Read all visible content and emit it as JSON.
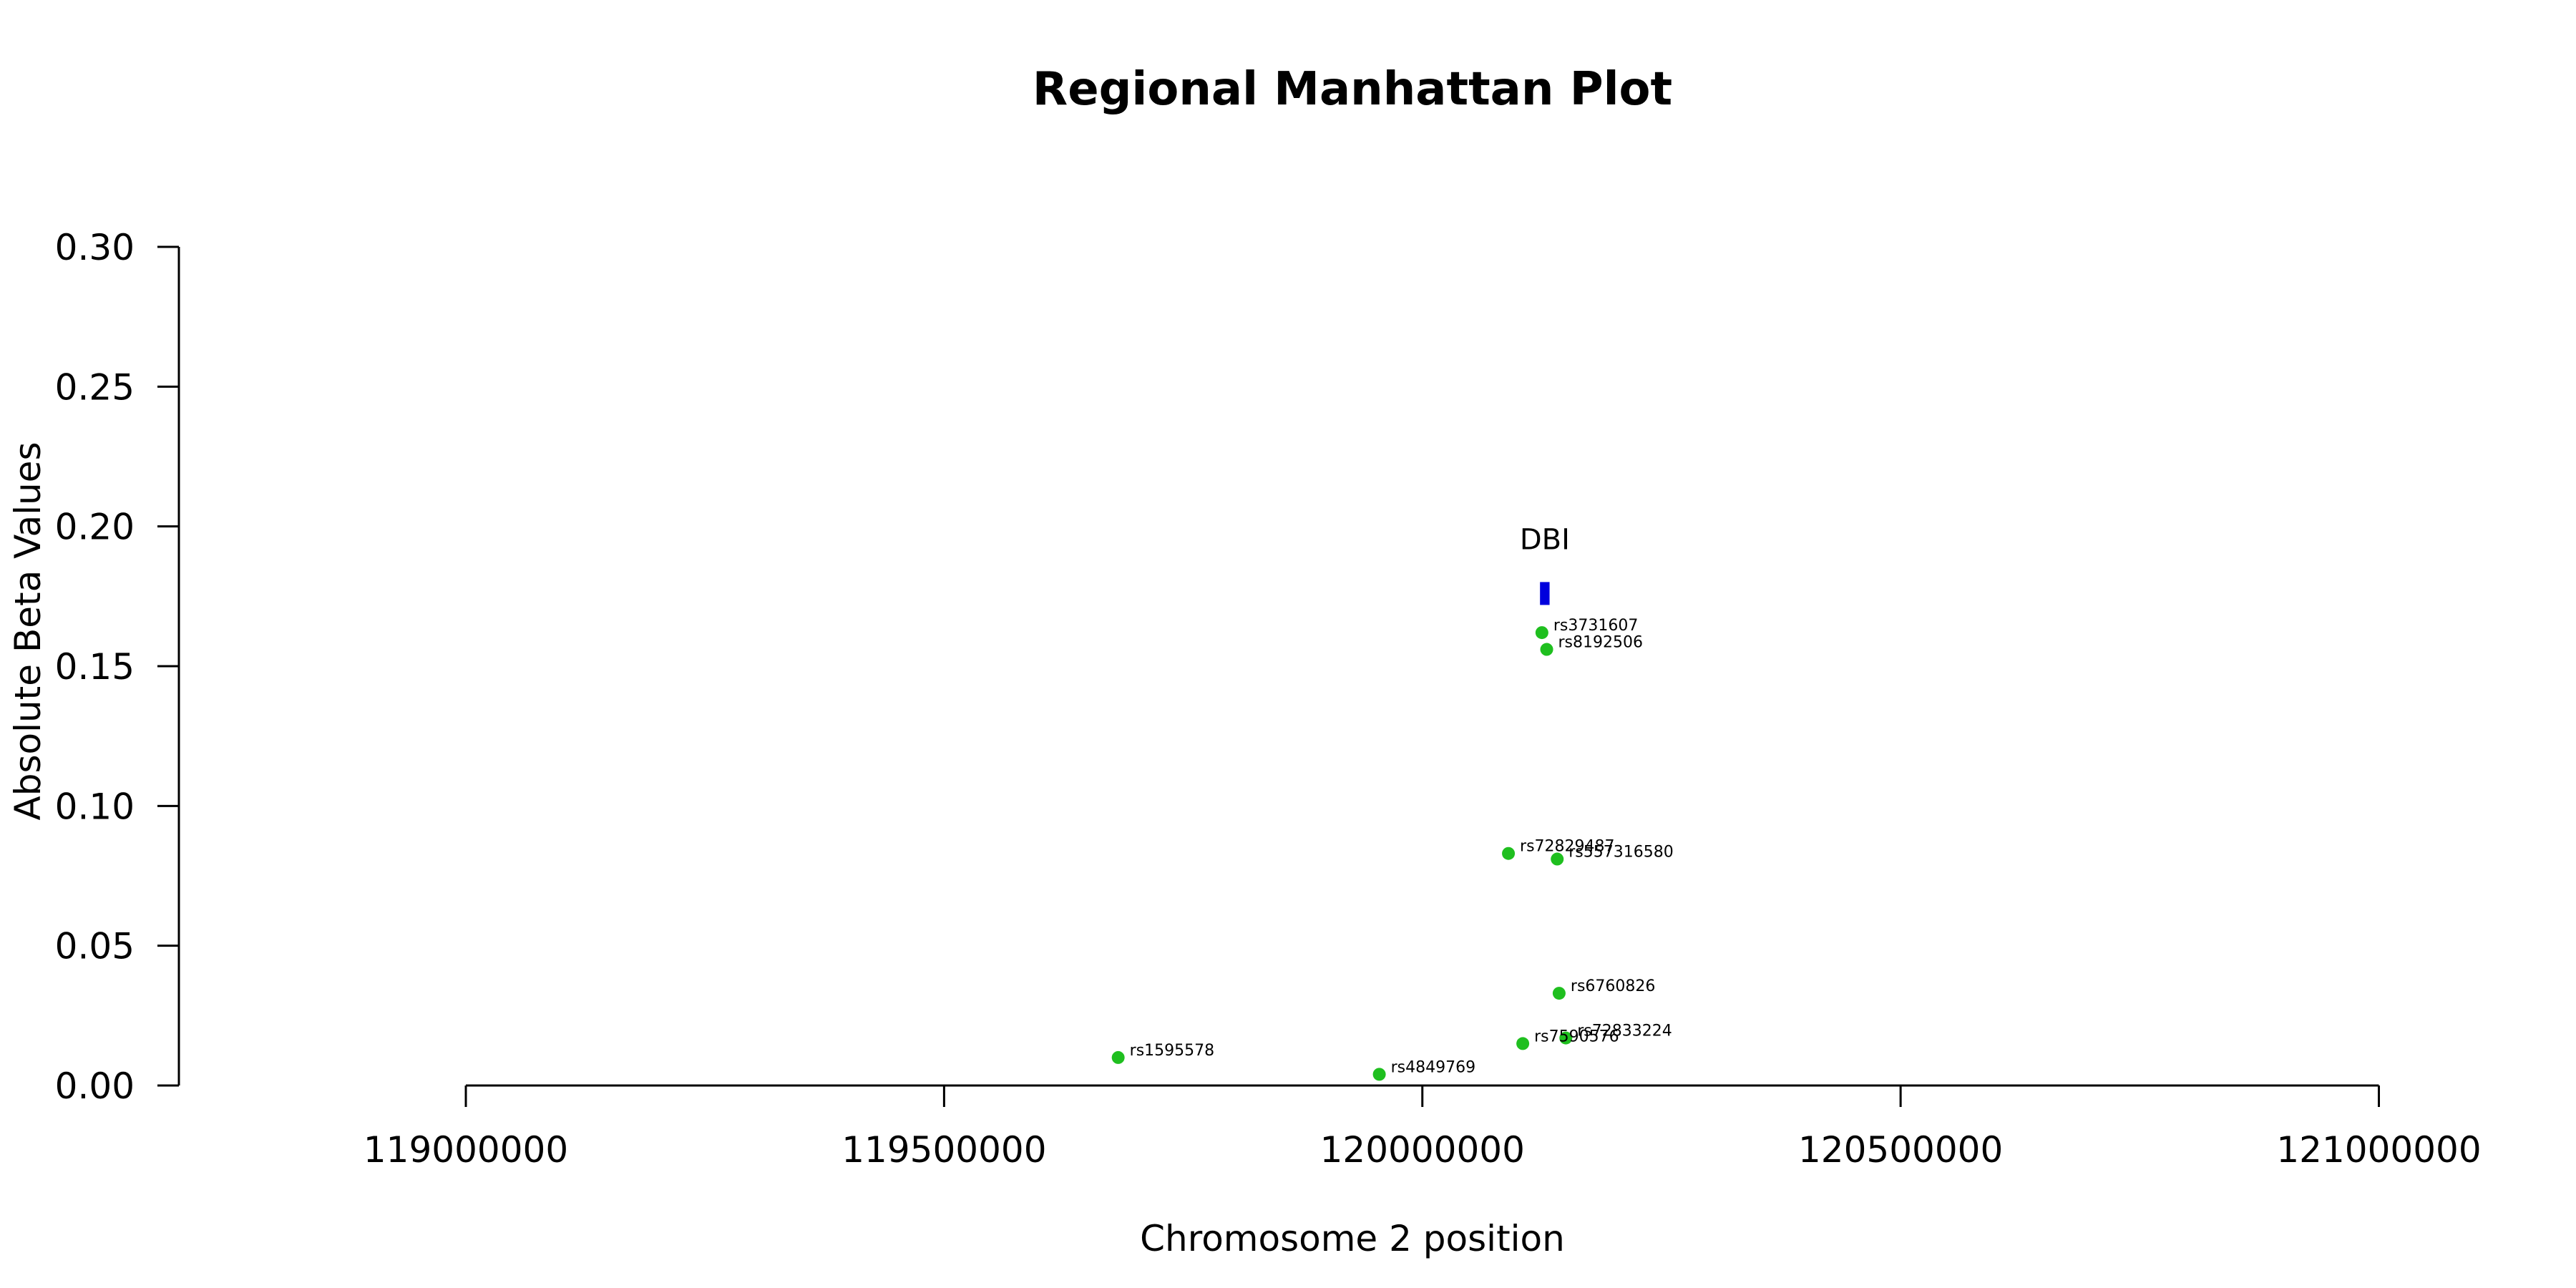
{
  "chart_data": {
    "type": "scatter",
    "title": "Regional Manhattan Plot",
    "xlabel": "Chromosome 2 position",
    "ylabel": "Absolute Beta Values",
    "xlim": [
      118700000,
      121150000
    ],
    "ylim": [
      0,
      0.3
    ],
    "x_ticks": [
      119000000,
      119500000,
      120000000,
      120500000,
      121000000
    ],
    "x_tick_labels": [
      "119000000",
      "119500000",
      "120000000",
      "120500000",
      "121000000"
    ],
    "y_ticks": [
      0.0,
      0.05,
      0.1,
      0.15,
      0.2,
      0.25,
      0.3
    ],
    "y_tick_labels": [
      "0.00",
      "0.05",
      "0.10",
      "0.15",
      "0.20",
      "0.25",
      "0.30"
    ],
    "point_color": "#1fbf1f",
    "gene_color": "#0000dd",
    "points": [
      {
        "label": "rs3731607",
        "x": 120125000,
        "y": 0.162
      },
      {
        "label": "rs8192506",
        "x": 120130000,
        "y": 0.156
      },
      {
        "label": "rs72829487",
        "x": 120090000,
        "y": 0.083
      },
      {
        "label": "rs557316580",
        "x": 120141000,
        "y": 0.081
      },
      {
        "label": "rs6760826",
        "x": 120143000,
        "y": 0.033
      },
      {
        "label": "rs72833224",
        "x": 120150000,
        "y": 0.017
      },
      {
        "label": "rs7590576",
        "x": 120105000,
        "y": 0.015
      },
      {
        "label": "rs1595578",
        "x": 119682000,
        "y": 0.01
      },
      {
        "label": "rs4849769",
        "x": 119955000,
        "y": 0.004
      }
    ],
    "genes": [
      {
        "name": "DBI",
        "start": 120123000,
        "end": 120133000,
        "y": 0.176
      }
    ]
  }
}
